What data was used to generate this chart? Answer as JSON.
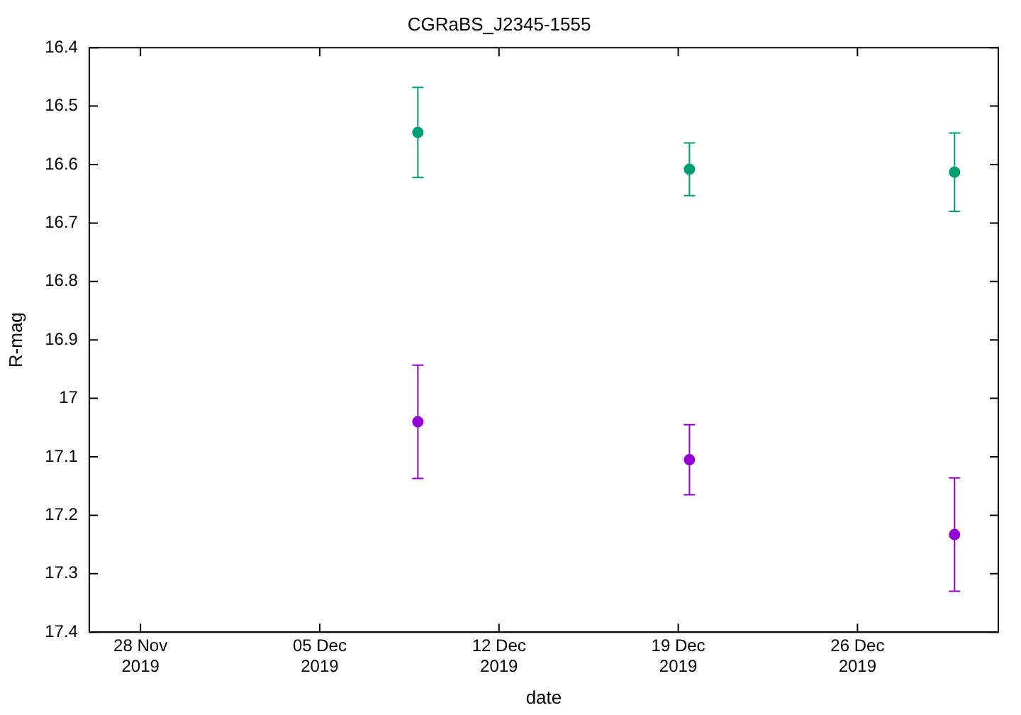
{
  "chart_data": {
    "type": "scatter",
    "title": "CGRaBS_J2345-1555",
    "xlabel": "date",
    "ylabel": "R-mag",
    "xlim": [
      "2019-11-26",
      "2019-12-31T12:00"
    ],
    "xticks": [
      {
        "value": "2019-11-28",
        "label": "28 Nov\n2019"
      },
      {
        "value": "2019-12-05",
        "label": "05 Dec\n2019"
      },
      {
        "value": "2019-12-12",
        "label": "12 Dec\n2019"
      },
      {
        "value": "2019-12-19",
        "label": "19 Dec\n2019"
      },
      {
        "value": "2019-12-26",
        "label": "26 Dec\n2019"
      }
    ],
    "ylim": [
      17.4,
      16.4
    ],
    "yticks": [
      16.4,
      16.5,
      16.6,
      16.7,
      16.8,
      16.9,
      17,
      17.1,
      17.2,
      17.3,
      17.4
    ],
    "grid": false,
    "legend": false,
    "marker": "circle",
    "series": [
      {
        "color": "#009e73",
        "x": [
          "2019-12-08T20:00",
          "2019-12-19T10:30",
          "2019-12-29T19:00"
        ],
        "values": [
          16.545,
          16.608,
          16.613
        ],
        "errors": [
          0.077,
          0.045,
          0.067
        ]
      },
      {
        "color": "#9400d3",
        "x": [
          "2019-12-08T20:00",
          "2019-12-19T10:30",
          "2019-12-29T19:00"
        ],
        "values": [
          17.04,
          17.105,
          17.233
        ],
        "errors": [
          0.097,
          0.06,
          0.097
        ]
      }
    ]
  }
}
